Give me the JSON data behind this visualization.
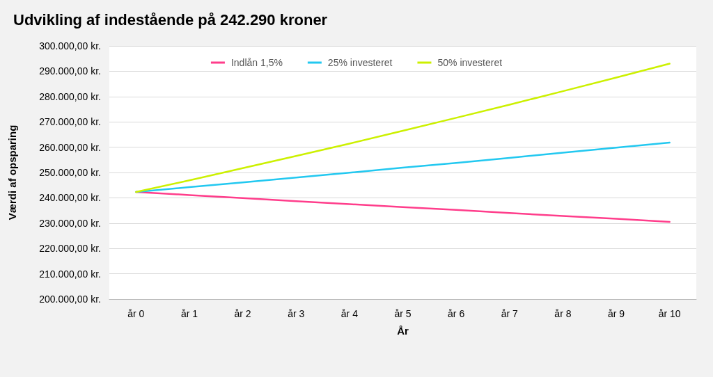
{
  "chart_data": {
    "type": "line",
    "title": "Udvikling af indestående på 242.290 kroner",
    "xlabel": "År",
    "ylabel": "Værdi af opsparing",
    "categories": [
      "år 0",
      "år 1",
      "år 2",
      "år 3",
      "år 4",
      "år 5",
      "år 6",
      "år 7",
      "år 8",
      "år 9",
      "år 10"
    ],
    "series": [
      {
        "name": "Indlån 1,5%",
        "color": "#ff3d8b",
        "values": [
          242300,
          241100,
          239900,
          238700,
          237500,
          236300,
          235200,
          234000,
          232800,
          231700,
          230500
        ]
      },
      {
        "name": "25% investeret",
        "color": "#22c8f0",
        "values": [
          242300,
          244200,
          246100,
          248000,
          249900,
          251900,
          253800,
          255800,
          257800,
          259800,
          261800
        ]
      },
      {
        "name": "50% investeret",
        "color": "#ccf000",
        "values": [
          242300,
          246900,
          251700,
          256500,
          261400,
          266500,
          271600,
          276800,
          282100,
          287500,
          293000
        ]
      }
    ],
    "ylim": [
      200000,
      300000
    ],
    "yticks": [
      {
        "value": 200000,
        "label": "200.000,00 kr."
      },
      {
        "value": 210000,
        "label": "210.000,00 kr."
      },
      {
        "value": 220000,
        "label": "220.000,00 kr."
      },
      {
        "value": 230000,
        "label": "230.000,00 kr."
      },
      {
        "value": 240000,
        "label": "240.000,00 kr."
      },
      {
        "value": 250000,
        "label": "250.000,00 kr."
      },
      {
        "value": 260000,
        "label": "260.000,00 kr."
      },
      {
        "value": 270000,
        "label": "270.000,00 kr."
      },
      {
        "value": 280000,
        "label": "280.000,00 kr."
      },
      {
        "value": 290000,
        "label": "290.000,00 kr."
      },
      {
        "value": 300000,
        "label": "300.000,00 kr."
      }
    ],
    "grid": "y",
    "legend": "top",
    "marker": "none",
    "line_style": "solid"
  }
}
